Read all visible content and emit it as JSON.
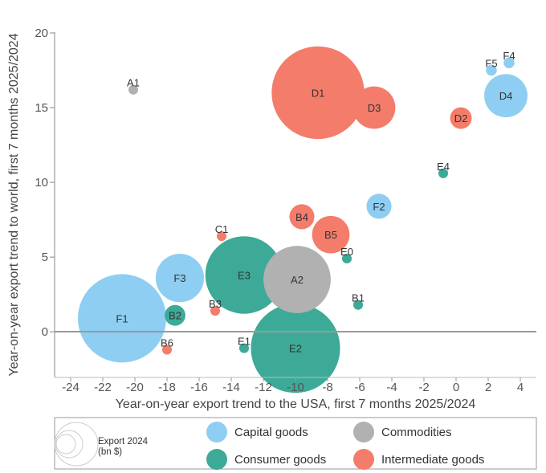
{
  "chart_data": {
    "type": "scatter",
    "subtype": "bubble",
    "xlabel": "Year-on-year export trend to the USA, first 7 months 2025/2024",
    "ylabel": "Year-on-year export trend to world, first 7 months 2025/2024",
    "xlim": [
      -25,
      5
    ],
    "ylim": [
      -3,
      20
    ],
    "x_ticks": [
      -24,
      -22,
      -20,
      -18,
      -16,
      -14,
      -12,
      -10,
      -8,
      -6,
      -4,
      -2,
      0,
      2,
      4
    ],
    "y_ticks": [
      0,
      5,
      10,
      15,
      20
    ],
    "zero_line": true,
    "grid": false,
    "legend": {
      "placement": "bottom",
      "size_title": "Export 2024",
      "size_unit": "(bn $)",
      "entries": [
        {
          "name": "Capital goods",
          "color": "#8ecef2"
        },
        {
          "name": "Commodities",
          "color": "#b1b1b1"
        },
        {
          "name": "Consumer goods",
          "color": "#3daa97"
        },
        {
          "name": "Intermediate goods",
          "color": "#f47c6a"
        }
      ]
    },
    "series": [
      {
        "name": "Capital goods",
        "color": "#8ecef2",
        "points": [
          {
            "label": "F1",
            "x": -20.8,
            "y": 0.9,
            "size": 100
          },
          {
            "label": "F3",
            "x": -17.2,
            "y": 3.6,
            "size": 30
          },
          {
            "label": "F2",
            "x": -4.8,
            "y": 8.4,
            "size": 8
          },
          {
            "label": "D4",
            "x": 3.1,
            "y": 15.8,
            "size": 24
          },
          {
            "label": "F5",
            "x": 2.2,
            "y": 17.5,
            "size": 1.5
          },
          {
            "label": "F4",
            "x": 3.3,
            "y": 18.0,
            "size": 1.5
          }
        ]
      },
      {
        "name": "Commodities",
        "color": "#b1b1b1",
        "points": [
          {
            "label": "A2",
            "x": -9.9,
            "y": 3.5,
            "size": 58
          },
          {
            "label": "A1",
            "x": -20.1,
            "y": 16.2,
            "size": 1.2
          }
        ]
      },
      {
        "name": "Consumer goods",
        "color": "#3daa97",
        "points": [
          {
            "label": "E3",
            "x": -13.2,
            "y": 3.8,
            "size": 77
          },
          {
            "label": "E2",
            "x": -10.0,
            "y": -1.1,
            "size": 102
          },
          {
            "label": "B2",
            "x": -17.5,
            "y": 1.1,
            "size": 5.5
          },
          {
            "label": "E1",
            "x": -13.2,
            "y": -1.1,
            "size": 1.2
          },
          {
            "label": "E0",
            "x": -6.8,
            "y": 4.9,
            "size": 1.2
          },
          {
            "label": "B1",
            "x": -6.1,
            "y": 1.8,
            "size": 1.2
          },
          {
            "label": "E4",
            "x": -0.8,
            "y": 10.6,
            "size": 1.2
          }
        ]
      },
      {
        "name": "Intermediate goods",
        "color": "#f47c6a",
        "points": [
          {
            "label": "D1",
            "x": -8.6,
            "y": 16.0,
            "size": 110
          },
          {
            "label": "D3",
            "x": -5.1,
            "y": 15.0,
            "size": 23
          },
          {
            "label": "D2",
            "x": 0.3,
            "y": 14.3,
            "size": 6
          },
          {
            "label": "B4",
            "x": -9.6,
            "y": 7.7,
            "size": 8
          },
          {
            "label": "B5",
            "x": -7.8,
            "y": 6.5,
            "size": 18
          },
          {
            "label": "C1",
            "x": -14.6,
            "y": 6.4,
            "size": 1.2
          },
          {
            "label": "B3",
            "x": -15.0,
            "y": 1.4,
            "size": 1.2
          },
          {
            "label": "B6",
            "x": -18.0,
            "y": -1.2,
            "size": 1.2
          }
        ]
      }
    ]
  }
}
